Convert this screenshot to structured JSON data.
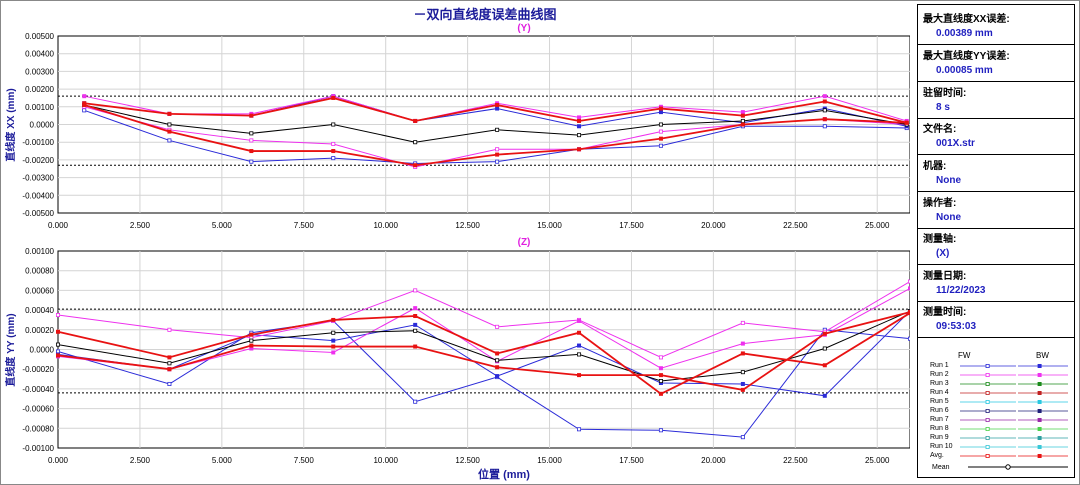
{
  "title": "－双向直线度误差曲线图",
  "chart_data": [
    {
      "type": "line",
      "subtitle": "(Y)",
      "ylabel": "直线度 XX (mm)",
      "xlabel": "",
      "xlim": [
        0,
        26
      ],
      "ylim": [
        -0.005,
        0.005
      ],
      "x_ticks": [
        "0.000",
        "2.500",
        "5.000",
        "7.500",
        "10.000",
        "12.500",
        "15.000",
        "17.500",
        "20.000",
        "22.500",
        "25.000"
      ],
      "y_ticks": [
        "0.00500",
        "0.00400",
        "0.00300",
        "0.00200",
        "0.00100",
        "0.0000",
        "-0.00100",
        "-0.00200",
        "-0.00300",
        "-0.00400",
        "-0.00500"
      ],
      "x": [
        0.8,
        3.4,
        5.9,
        8.4,
        10.9,
        13.4,
        15.9,
        18.4,
        20.9,
        23.4,
        25.9
      ],
      "limits": [
        0.0016,
        -0.0023
      ],
      "grid": true,
      "series": [
        {
          "name": "Run 1",
          "color": "#2b2bd8",
          "direction": "FW",
          "values": [
            0.0008,
            -0.0009,
            -0.0021,
            -0.0019,
            -0.0022,
            -0.0021,
            -0.0014,
            -0.0012,
            -0.0001,
            -0.0001,
            -0.0002
          ]
        },
        {
          "name": "Run 1",
          "color": "#2b2bd8",
          "direction": "BW",
          "values": [
            0.0012,
            0.0006,
            0.0005,
            0.0016,
            0.0002,
            0.0009,
            -0.0001,
            0.0007,
            0.0001,
            0.0009,
            -0.0001
          ]
        },
        {
          "name": "Run 2",
          "color": "#ee30ee",
          "direction": "FW",
          "values": [
            0.001,
            -0.0003,
            -0.0009,
            -0.0011,
            -0.0024,
            -0.0014,
            -0.0014,
            -0.0004,
            0.0,
            0.0003,
            0.0
          ]
        },
        {
          "name": "Run 2",
          "color": "#ee30ee",
          "direction": "BW",
          "values": [
            0.0016,
            0.0006,
            0.0006,
            0.0016,
            0.0002,
            0.0012,
            0.0004,
            0.001,
            0.0007,
            0.0016,
            0.0002
          ]
        },
        {
          "name": "Mean",
          "color": "#000000",
          "values": [
            0.0011,
            0.0,
            -0.0005,
            0.0,
            -0.001,
            -0.0003,
            -0.0006,
            0.0,
            0.0002,
            0.0008,
            0.0
          ]
        },
        {
          "name": "Avg.",
          "color": "#e81212",
          "values": [
            0.0011,
            -0.0004,
            -0.0015,
            -0.0015,
            -0.0023,
            -0.0017,
            -0.0014,
            -0.0008,
            0.0,
            0.0003,
            0.0001
          ]
        },
        {
          "name": "Avg.",
          "color": "#e81212",
          "values": [
            0.0012,
            0.0006,
            0.0005,
            0.0015,
            0.0002,
            0.0011,
            0.0002,
            0.0009,
            0.0005,
            0.0013,
            0.0001
          ]
        }
      ]
    },
    {
      "type": "line",
      "subtitle": "(Z)",
      "ylabel": "直线度 YY (mm)",
      "xlabel": "位置 (mm)",
      "xlim": [
        0,
        26
      ],
      "ylim": [
        -0.001,
        0.001
      ],
      "x_ticks": [
        "0.000",
        "2.500",
        "5.000",
        "7.500",
        "10.000",
        "12.500",
        "15.000",
        "17.500",
        "20.000",
        "22.500",
        "25.000"
      ],
      "y_ticks": [
        "0.00100",
        "0.00080",
        "0.00060",
        "0.00040",
        "0.00020",
        "0.0000",
        "-0.00020",
        "-0.00040",
        "-0.00060",
        "-0.00080",
        "-0.00100"
      ],
      "x": [
        0.0,
        3.4,
        5.9,
        8.4,
        10.9,
        13.4,
        15.9,
        18.4,
        20.9,
        23.4,
        26.0
      ],
      "limits": [
        0.00041,
        -0.00044
      ],
      "grid": true,
      "series": [
        {
          "name": "Run 1",
          "color": "#2b2bd8",
          "direction": "FW",
          "values": [
            -2e-05,
            -0.00035,
            0.00017,
            0.00029,
            -0.00053,
            -0.00028,
            -0.00081,
            -0.00082,
            -0.00089,
            0.0002,
            0.00011
          ]
        },
        {
          "name": "Run 1",
          "color": "#2b2bd8",
          "direction": "BW",
          "values": [
            -5e-05,
            -0.0002,
            0.00015,
            9e-05,
            0.00025,
            -0.00027,
            4e-05,
            -0.00034,
            -0.00035,
            -0.00047,
            0.00039
          ]
        },
        {
          "name": "Run 2",
          "color": "#ee30ee",
          "direction": "FW",
          "values": [
            0.00035,
            0.0002,
            0.00012,
            0.00029,
            0.0006,
            0.00023,
            0.0003,
            -8e-05,
            0.00027,
            0.00018,
            0.00069
          ]
        },
        {
          "name": "Run 2",
          "color": "#ee30ee",
          "direction": "BW",
          "values": [
            -7e-05,
            -0.0002,
            1e-05,
            -3e-05,
            0.00042,
            -0.00012,
            0.00029,
            -0.00019,
            6e-05,
            0.00015,
            0.00062
          ]
        },
        {
          "name": "Mean",
          "color": "#000000",
          "values": [
            5e-05,
            -0.00014,
            9e-05,
            0.00017,
            0.00019,
            -0.00011,
            -5e-05,
            -0.00032,
            -0.00023,
            1e-05,
            0.00039
          ]
        },
        {
          "name": "Avg.",
          "color": "#e81212",
          "values": [
            0.00018,
            -8e-05,
            0.00015,
            0.0003,
            0.00034,
            -4e-05,
            0.00017,
            -0.00045,
            -4e-05,
            -0.00016,
            0.00037
          ]
        },
        {
          "name": "Avg.",
          "color": "#e81212",
          "values": [
            -6e-05,
            -0.0002,
            4e-05,
            3e-05,
            3e-05,
            -0.00018,
            -0.00026,
            -0.00026,
            -0.00041,
            0.00016,
            0.00038
          ]
        }
      ]
    }
  ],
  "info": [
    {
      "label": "最大直线度XX误差:",
      "value": "0.00389 mm"
    },
    {
      "label": "最大直线度YY误差:",
      "value": "0.00085 mm"
    },
    {
      "label": "驻留时间:",
      "value": "8 s"
    },
    {
      "label": "文件名:",
      "value": "001X.str"
    },
    {
      "label": "机器:",
      "value": "None"
    },
    {
      "label": "操作者:",
      "value": "None"
    },
    {
      "label": "测量轴:",
      "value": "(X)"
    },
    {
      "label": "测量日期:",
      "value": "11/22/2023"
    },
    {
      "label": "测量时间:",
      "value": "09:53:03"
    }
  ],
  "legend": {
    "fw_label": "FW",
    "bw_label": "BW",
    "rows": [
      {
        "label": "Run 1",
        "color": "#2b2bd8"
      },
      {
        "label": "Run 2",
        "color": "#ee30ee"
      },
      {
        "label": "Run 3",
        "color": "#1a8a1a"
      },
      {
        "label": "Run 4",
        "color": "#c02020"
      },
      {
        "label": "Run 5",
        "color": "#29c8e0"
      },
      {
        "label": "Run 6",
        "color": "#20207a"
      },
      {
        "label": "Run 7",
        "color": "#9a2aa8"
      },
      {
        "label": "Run 8",
        "color": "#4ad24a"
      },
      {
        "label": "Run 9",
        "color": "#2e9fa0"
      },
      {
        "label": "Run 10",
        "color": "#38c8d8"
      },
      {
        "label": "Avg.",
        "color": "#e81212"
      }
    ],
    "mean_label": "Mean",
    "mean_color": "#000000"
  }
}
